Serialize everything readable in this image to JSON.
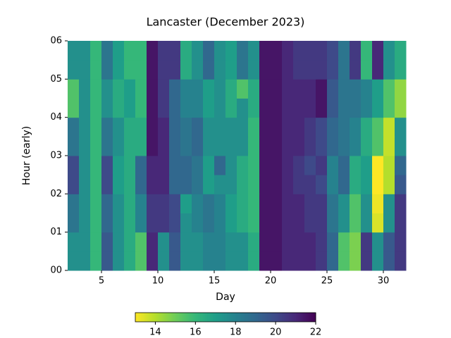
{
  "chart_data": {
    "type": "heatmap",
    "title": "Lancaster (December 2023)",
    "x_label": "Day",
    "y_label": "Hour (early)",
    "x": [
      2,
      3,
      4,
      5,
      6,
      7,
      8,
      9,
      10,
      11,
      12,
      13,
      14,
      15,
      16,
      17,
      18,
      19,
      20,
      21,
      22,
      23,
      24,
      25,
      26,
      27,
      28,
      29,
      30,
      31
    ],
    "y": [
      0,
      0.5,
      1,
      1.5,
      2,
      2.5,
      3,
      3.5,
      4,
      4.5,
      5,
      5.5
    ],
    "values": [
      [
        17.5,
        17.5,
        16,
        19.5,
        17.5,
        16.5,
        15.5,
        21,
        17.5,
        19.5,
        17.5,
        17.5,
        18,
        18,
        17.5,
        17.5,
        16.5,
        21.5,
        21.5,
        21,
        21,
        21,
        20.5,
        19,
        15.5,
        14.8,
        20.5,
        17.5,
        19.5,
        20.5
      ],
      [
        17.5,
        17.5,
        16,
        19.5,
        17.5,
        16.5,
        15.5,
        21,
        17.5,
        19.5,
        17.5,
        17.5,
        18,
        18,
        17.5,
        17.5,
        16.5,
        21.5,
        21.5,
        21,
        21,
        21,
        20.5,
        19,
        15.5,
        14.8,
        20.5,
        17.5,
        19.5,
        20.5
      ],
      [
        18.5,
        17.5,
        16,
        19,
        17.5,
        16.5,
        18,
        20.5,
        20.5,
        20,
        17.5,
        18,
        18.5,
        18,
        17,
        16.5,
        16,
        21.5,
        21.5,
        21,
        21,
        20.5,
        20.5,
        18.5,
        17.5,
        15.5,
        17.5,
        13.5,
        17.5,
        20.5
      ],
      [
        18.5,
        17.5,
        16,
        19,
        17.5,
        16.5,
        18,
        20.5,
        20.5,
        20,
        17,
        18,
        18.5,
        18,
        17,
        16.5,
        16,
        21.5,
        21.5,
        21,
        21,
        20.5,
        20.5,
        18.5,
        17.5,
        15.5,
        17.5,
        13.2,
        17.5,
        20.5
      ],
      [
        20,
        17.5,
        16,
        20,
        17,
        16.5,
        19,
        21,
        21,
        19,
        19,
        18.5,
        17,
        17.5,
        17.5,
        16.5,
        16,
        21.5,
        21.5,
        21,
        20.5,
        20.5,
        20,
        18,
        19,
        16.5,
        17,
        13,
        14,
        19.5
      ],
      [
        20,
        17.5,
        16,
        20,
        17,
        16.5,
        19,
        21,
        21,
        19,
        19,
        18.5,
        17,
        19,
        17.5,
        16.5,
        16,
        21.5,
        21.5,
        21,
        20.5,
        20,
        20.5,
        18,
        19,
        16.5,
        17,
        13,
        14,
        19
      ],
      [
        18.5,
        17.5,
        16,
        18.5,
        17.5,
        16.5,
        16.5,
        21.5,
        21,
        19,
        18.5,
        19,
        17.5,
        17.5,
        17.5,
        17.5,
        16,
        21.5,
        21.5,
        21,
        21,
        20.5,
        20,
        19,
        18.5,
        18,
        16.5,
        15.5,
        13.8,
        17.5
      ],
      [
        18.5,
        17.5,
        16,
        18.5,
        17.5,
        16.5,
        16.5,
        21.5,
        21,
        19,
        18.5,
        19,
        17.5,
        17.5,
        17.5,
        17.5,
        16,
        21.5,
        21.5,
        21,
        21,
        20.5,
        20,
        19,
        18.5,
        18,
        16.5,
        15.5,
        13.8,
        17.5
      ],
      [
        15.5,
        17.5,
        16,
        17.5,
        16.5,
        17,
        16,
        21.5,
        20.5,
        19,
        18,
        18,
        17,
        17.5,
        16.5,
        17.5,
        16.5,
        21.5,
        21.5,
        21,
        21,
        21,
        21.5,
        19.5,
        18.5,
        18.5,
        18,
        17,
        15.5,
        14.5
      ],
      [
        15.5,
        17.5,
        16,
        17.5,
        16.5,
        17,
        16,
        21.5,
        20.5,
        19,
        18,
        18,
        17,
        17.5,
        16.5,
        15.5,
        16.5,
        21.5,
        21.5,
        21,
        21,
        21,
        21.5,
        19.5,
        18.5,
        18.5,
        18,
        17,
        15.5,
        14.5
      ],
      [
        17.5,
        17.5,
        16,
        18.5,
        17,
        16,
        16,
        21.5,
        20.5,
        20.5,
        16.5,
        17.5,
        19,
        17.5,
        17,
        18.5,
        17.5,
        21.5,
        21.5,
        21,
        20.5,
        20.5,
        20.5,
        20,
        18.5,
        20.5,
        16,
        21,
        17.5,
        16.5
      ],
      [
        17.5,
        17.5,
        16,
        18.5,
        17,
        16,
        16,
        21.5,
        20.5,
        20.5,
        16.5,
        17.5,
        19,
        17.5,
        17,
        18.5,
        17.5,
        21.5,
        21.5,
        21,
        20.5,
        20.5,
        20.5,
        20,
        18.5,
        20.5,
        16,
        21,
        17.5,
        16.5
      ]
    ],
    "xlim": [
      2,
      32
    ],
    "ylim": [
      0,
      6
    ],
    "xticks": [
      5,
      10,
      15,
      20,
      25,
      30
    ],
    "yticks": [
      {
        "value": 0,
        "label": "00"
      },
      {
        "value": 1,
        "label": "01"
      },
      {
        "value": 2,
        "label": "02"
      },
      {
        "value": 3,
        "label": "03"
      },
      {
        "value": 4,
        "label": "04"
      },
      {
        "value": 5,
        "label": "05"
      },
      {
        "value": 6,
        "label": "06"
      }
    ],
    "colormap": "viridis_r",
    "clim": [
      13,
      22
    ],
    "colorbar_ticks": [
      14,
      16,
      18,
      20,
      22
    ]
  }
}
